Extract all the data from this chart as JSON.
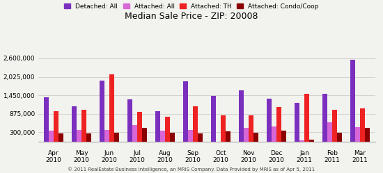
{
  "title": "Median Sale Price - ZIP: 20008",
  "month_labels_top": [
    "Apr",
    "May",
    "Jun",
    "Jul",
    "Aug",
    "Sep",
    "Oct",
    "Nov",
    "Dec",
    "Jan",
    "Feb",
    "Mar"
  ],
  "month_labels_bot": [
    "2010",
    "2010",
    "2010",
    "2010",
    "2010",
    "2010",
    "2010",
    "2010",
    "2010",
    "2011",
    "2011",
    "2011"
  ],
  "series": {
    "Detached: All": {
      "color": "#7b2fbe",
      "values": [
        1380000,
        1100000,
        1900000,
        1330000,
        950000,
        1875000,
        1430000,
        1600000,
        1350000,
        1220000,
        1500000,
        2550000
      ]
    },
    "Attached: All": {
      "color": "#d966d6",
      "values": [
        350000,
        370000,
        380000,
        530000,
        350000,
        370000,
        0,
        430000,
        480000,
        50000,
        620000,
        450000
      ]
    },
    "Attached: TH": {
      "color": "#ee2222",
      "values": [
        950000,
        1000000,
        2100000,
        925000,
        790000,
        1100000,
        820000,
        820000,
        1080000,
        1500000,
        1000000,
        1050000
      ]
    },
    "Attached: Condo/Coop": {
      "color": "#8b0000",
      "values": [
        260000,
        270000,
        280000,
        430000,
        290000,
        260000,
        330000,
        280000,
        360000,
        60000,
        295000,
        430000
      ]
    }
  },
  "ylim": [
    0,
    2800000
  ],
  "yticks": [
    300000,
    875000,
    1450000,
    2025000,
    2600000
  ],
  "ytick_labels": [
    "300,000",
    "875,000",
    "1,450,000",
    "2,025,000",
    "2,600,000"
  ],
  "bar_width": 0.18,
  "background_color": "#f2f2ee",
  "grid_color": "#cccccc",
  "footnote": "© 2011 RealEstate Business Intelligence, an MRIS Company. Data Provided by MRIS as of Apr 5, 2011"
}
